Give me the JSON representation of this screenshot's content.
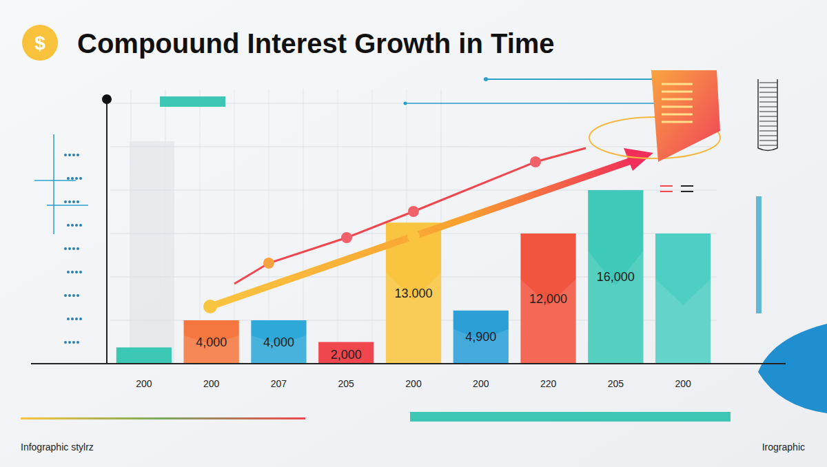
{
  "chart_data": {
    "type": "bar",
    "title": "Compouund Interest Growth in Time",
    "categories": [
      "200",
      "200",
      "207",
      "205",
      "200",
      "200",
      "220",
      "205",
      "200"
    ],
    "values": [
      1500,
      4000,
      4000,
      2000,
      13000,
      4900,
      12000,
      16000,
      12000
    ],
    "value_labels": [
      null,
      "4,000",
      "4,000",
      "2,000",
      "13.000",
      "4,900",
      "12,000",
      "16,000",
      null
    ],
    "colors": [
      "#3cc6b4",
      "#f5773f",
      "#2ea8d8",
      "#f0474f",
      "#f9c440",
      "#2b9fd6",
      "#f2553f",
      "#3ec9b8",
      "#4fcfc3"
    ],
    "ylim": [
      0,
      24000
    ],
    "yticks": [
      0,
      4000,
      8000,
      12000,
      16000,
      20000,
      24000
    ],
    "grid": true,
    "data_labels": true,
    "tick_labels": "x",
    "annotations": [
      "$",
      "Infographic stylrz",
      "Irographic"
    ]
  }
}
